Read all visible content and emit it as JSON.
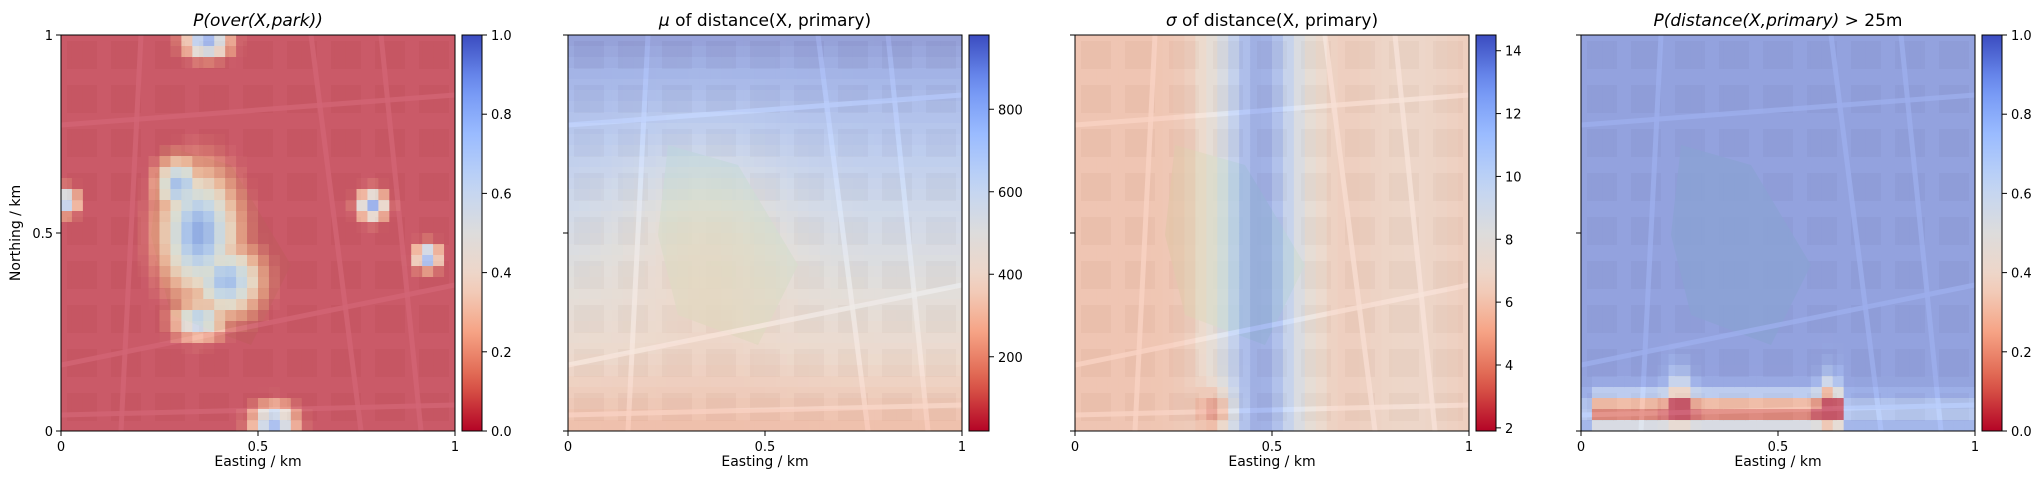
{
  "colors": {
    "cmap": [
      "#b40426",
      "#dd5f4b",
      "#f6a385",
      "#f1d4c4",
      "#dddcdc",
      "#c0d4f5",
      "#9abbff",
      "#6f92f3",
      "#3b4cc0"
    ],
    "map_base": "#e8e2da",
    "road": "#ffffff",
    "park": "#cfe0c0",
    "building": "#d4c8c0"
  },
  "chart_data": [
    {
      "type": "heatmap",
      "title": "P(over(X, park))",
      "title_math": "P(over(X,park))",
      "title_suffix": "",
      "xlabel": "Easting / km",
      "ylabel": "Northing / km",
      "xlim": [
        0,
        1
      ],
      "ylim": [
        0,
        1
      ],
      "xticks": [
        "0",
        "0.5",
        "1"
      ],
      "yticks": [
        "0",
        "0.5",
        "1"
      ],
      "colorbar": {
        "min": 0.0,
        "max": 1.0,
        "ticks": [
          "0.0",
          "0.2",
          "0.4",
          "0.6",
          "0.8",
          "1.0"
        ]
      },
      "blobs": [
        {
          "x": 0.35,
          "y": 0.5,
          "rx": 0.1,
          "ry": 0.16,
          "value": 0.88
        },
        {
          "x": 0.3,
          "y": 0.62,
          "rx": 0.06,
          "ry": 0.07,
          "value": 0.8
        },
        {
          "x": 0.42,
          "y": 0.38,
          "rx": 0.09,
          "ry": 0.09,
          "value": 0.8
        },
        {
          "x": 0.35,
          "y": 0.28,
          "rx": 0.07,
          "ry": 0.05,
          "value": 0.7
        },
        {
          "x": 0.37,
          "y": 0.98,
          "rx": 0.06,
          "ry": 0.04,
          "value": 0.85
        },
        {
          "x": 0.79,
          "y": 0.57,
          "rx": 0.04,
          "ry": 0.04,
          "value": 0.85
        },
        {
          "x": 0.93,
          "y": 0.44,
          "rx": 0.035,
          "ry": 0.035,
          "value": 0.85
        },
        {
          "x": 0.02,
          "y": 0.58,
          "rx": 0.025,
          "ry": 0.035,
          "value": 0.8
        },
        {
          "x": 0.54,
          "y": 0.02,
          "rx": 0.06,
          "ry": 0.05,
          "value": 0.8
        }
      ],
      "background_value": 0.02,
      "overlay_opacity": 0.65
    },
    {
      "type": "heatmap",
      "title": "μ of distance(X, primary)",
      "title_math": "μ",
      "title_suffix": " of distance(X, primary)",
      "xlabel": "Easting / km",
      "ylabel": "",
      "xlim": [
        0,
        1
      ],
      "ylim": [
        0,
        1
      ],
      "xticks": [
        "0",
        "0.5",
        "1"
      ],
      "yticks": [],
      "colorbar": {
        "min": 20,
        "max": 980,
        "ticks": [
          "200",
          "400",
          "600",
          "800"
        ],
        "tick_values": [
          200,
          400,
          600,
          800
        ]
      },
      "field": "distance_mean",
      "overlay_opacity": 0.55
    },
    {
      "type": "heatmap",
      "title": "σ of distance(X, primary)",
      "title_math": "σ",
      "title_suffix": " of distance(X, primary)",
      "xlabel": "Easting / km",
      "ylabel": "",
      "xlim": [
        0,
        1
      ],
      "ylim": [
        0,
        1
      ],
      "xticks": [
        "0",
        "0.5",
        "1"
      ],
      "yticks": [],
      "colorbar": {
        "min": 1.9,
        "max": 14.5,
        "ticks": [
          "2",
          "4",
          "6",
          "8",
          "10",
          "12",
          "14"
        ],
        "tick_values": [
          2,
          4,
          6,
          8,
          10,
          12,
          14
        ]
      },
      "field": "distance_std",
      "overlay_opacity": 0.55
    },
    {
      "type": "heatmap",
      "title": "P(distance(X, primary) > 25m",
      "title_math": "P(distance(X,primary)",
      "title_suffix": " > 25m",
      "xlabel": "Easting / km",
      "ylabel": "",
      "xlim": [
        0,
        1
      ],
      "ylim": [
        0,
        1
      ],
      "xticks": [
        "0",
        "0.5",
        "1"
      ],
      "yticks": [],
      "colorbar": {
        "min": 0.0,
        "max": 1.0,
        "ticks": [
          "0.0",
          "0.2",
          "0.4",
          "0.6",
          "0.8",
          "1.0"
        ]
      },
      "field": "prob_far",
      "overlay_opacity": 0.6
    }
  ]
}
